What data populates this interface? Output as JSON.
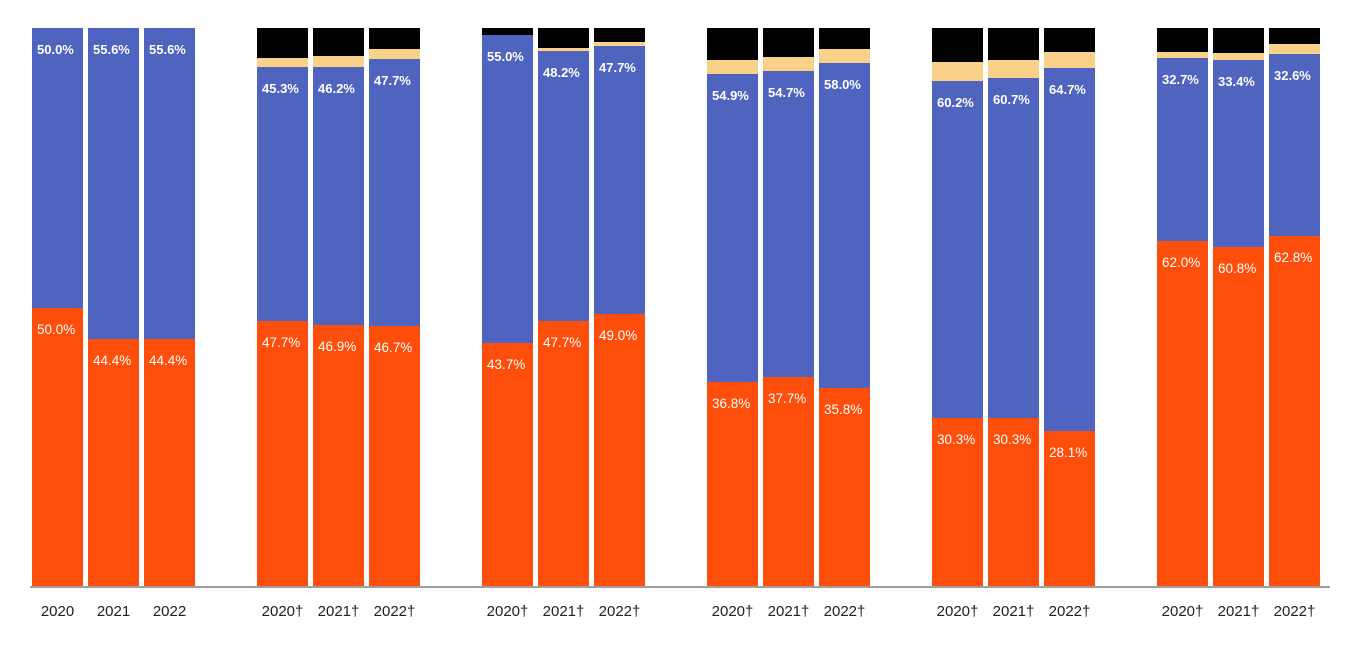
{
  "colors": {
    "orange": "#FE4E0B",
    "blue": "#4F64BE",
    "tan": "#FAD189",
    "black": "#000000",
    "axis_line": "#9E9E9E",
    "segment_label_text": "#FFFFFF",
    "tick_text": "#212121",
    "background": "#FFFFFF"
  },
  "chart_data": {
    "type": "bar",
    "subtype": "stacked-100-percent-column",
    "title": "",
    "xlabel": "",
    "ylabel": "",
    "unit": "%",
    "ylim": [
      0,
      100
    ],
    "grid": false,
    "legend": "none",
    "series_order_bottom_to_top": [
      "orange",
      "blue",
      "tan",
      "black"
    ],
    "groups": [
      {
        "bars": [
          {
            "tick": "2020",
            "black": 0,
            "tan": 0,
            "blue": 50.0,
            "orange": 50.0,
            "blue_label": "50.0%",
            "orange_label": "50.0%"
          },
          {
            "tick": "2021",
            "black": 0,
            "tan": 0,
            "blue": 55.6,
            "orange": 44.4,
            "blue_label": "55.6%",
            "orange_label": "44.4%"
          },
          {
            "tick": "2022",
            "black": 0,
            "tan": 0,
            "blue": 55.6,
            "orange": 44.4,
            "blue_label": "55.6%",
            "orange_label": "44.4%"
          }
        ]
      },
      {
        "bars": [
          {
            "tick": "2020†",
            "black": 5.3,
            "tan": 1.7,
            "blue": 45.3,
            "orange": 47.7,
            "blue_label": "45.3%",
            "orange_label": "47.7%"
          },
          {
            "tick": "2021†",
            "black": 5.0,
            "tan": 1.9,
            "blue": 46.2,
            "orange": 46.9,
            "blue_label": "46.2%",
            "orange_label": "46.9%"
          },
          {
            "tick": "2022†",
            "black": 3.8,
            "tan": 1.8,
            "blue": 47.7,
            "orange": 46.7,
            "blue_label": "47.7%",
            "orange_label": "46.7%"
          }
        ]
      },
      {
        "bars": [
          {
            "tick": "2020†",
            "black": 1.3,
            "tan": 0,
            "blue": 55.0,
            "orange": 43.7,
            "blue_label": "55.0%",
            "orange_label": "43.7%"
          },
          {
            "tick": "2021†",
            "black": 3.5,
            "tan": 0.6,
            "blue": 48.2,
            "orange": 47.7,
            "blue_label": "48.2%",
            "orange_label": "47.7%"
          },
          {
            "tick": "2022†",
            "black": 2.5,
            "tan": 0.8,
            "blue": 47.7,
            "orange": 49.0,
            "blue_label": "47.7%",
            "orange_label": "49.0%"
          }
        ]
      },
      {
        "bars": [
          {
            "tick": "2020†",
            "black": 5.8,
            "tan": 2.5,
            "blue": 54.9,
            "orange": 36.8,
            "blue_label": "54.9%",
            "orange_label": "36.8%"
          },
          {
            "tick": "2021†",
            "black": 5.2,
            "tan": 2.4,
            "blue": 54.7,
            "orange": 37.7,
            "blue_label": "54.7%",
            "orange_label": "37.7%"
          },
          {
            "tick": "2022†",
            "black": 3.7,
            "tan": 2.5,
            "blue": 58.0,
            "orange": 35.8,
            "blue_label": "58.0%",
            "orange_label": "35.8%"
          }
        ]
      },
      {
        "bars": [
          {
            "tick": "2020†",
            "black": 6.1,
            "tan": 3.4,
            "blue": 60.2,
            "orange": 30.3,
            "blue_label": "60.2%",
            "orange_label": "30.3%"
          },
          {
            "tick": "2021†",
            "black": 5.8,
            "tan": 3.2,
            "blue": 60.7,
            "orange": 30.3,
            "blue_label": "60.7%",
            "orange_label": "30.3%"
          },
          {
            "tick": "2022†",
            "black": 4.3,
            "tan": 2.9,
            "blue": 64.7,
            "orange": 28.1,
            "blue_label": "64.7%",
            "orange_label": "28.1%"
          }
        ]
      },
      {
        "bars": [
          {
            "tick": "2020†",
            "black": 4.2,
            "tan": 1.1,
            "blue": 32.7,
            "orange": 62.0,
            "blue_label": "32.7%",
            "orange_label": "62.0%"
          },
          {
            "tick": "2021†",
            "black": 4.5,
            "tan": 1.3,
            "blue": 33.4,
            "orange": 60.8,
            "blue_label": "33.4%",
            "orange_label": "60.8%"
          },
          {
            "tick": "2022†",
            "black": 2.9,
            "tan": 1.7,
            "blue": 32.6,
            "orange": 62.8,
            "blue_label": "32.6%",
            "orange_label": "62.8%"
          }
        ]
      }
    ]
  }
}
